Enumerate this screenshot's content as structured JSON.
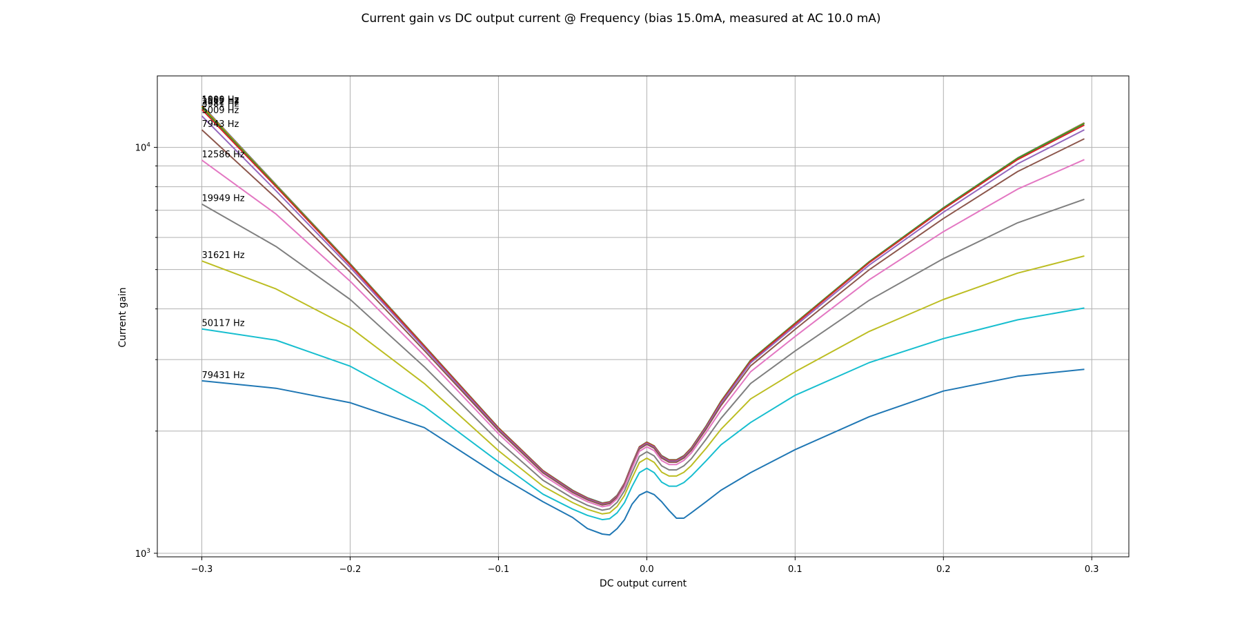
{
  "chart_data": {
    "type": "line",
    "title": "Current gain vs DC output current @ Frequency (bias 15.0mA, measured at AC 10.0 mA)",
    "xlabel": "DC output current",
    "ylabel": "Current gain",
    "xlim": [
      -0.33,
      0.325
    ],
    "ylim": [
      980,
      15000
    ],
    "y_scale": "log",
    "grid": true,
    "x_ticks": [
      -0.3,
      -0.2,
      -0.1,
      0.0,
      0.1,
      0.2,
      0.3
    ],
    "x_tick_labels": [
      "−0.3",
      "−0.2",
      "−0.1",
      "0.0",
      "0.1",
      "0.2",
      "0.3"
    ],
    "y_major_ticks": [
      1000,
      10000
    ],
    "y_minor_ticks": [
      2000,
      3000,
      4000,
      5000,
      6000,
      7000,
      8000,
      9000
    ],
    "y_tick_base": "10",
    "y_tick_exponents": [
      "3",
      "4"
    ],
    "x": [
      -0.3,
      -0.25,
      -0.2,
      -0.15,
      -0.1,
      -0.07,
      -0.05,
      -0.04,
      -0.03,
      -0.025,
      -0.02,
      -0.015,
      -0.01,
      -0.005,
      0.0,
      0.005,
      0.01,
      0.015,
      0.02,
      0.025,
      0.03,
      0.04,
      0.05,
      0.07,
      0.1,
      0.15,
      0.2,
      0.25,
      0.295
    ],
    "series": [
      {
        "name": "1000 Hz",
        "color": "#1f77b4",
        "values": [
          12700,
          8100,
          5170,
          3250,
          2040,
          1600,
          1430,
          1370,
          1330,
          1340,
          1390,
          1490,
          1660,
          1830,
          1880,
          1840,
          1740,
          1700,
          1700,
          1740,
          1820,
          2060,
          2370,
          2990,
          3690,
          5230,
          7100,
          9420,
          11500
        ]
      },
      {
        "name": "1585 Hz",
        "color": "#ff7f0e",
        "values": [
          12650,
          8080,
          5160,
          3245,
          2038,
          1598,
          1428,
          1368,
          1328,
          1338,
          1388,
          1488,
          1658,
          1828,
          1878,
          1838,
          1738,
          1698,
          1698,
          1738,
          1818,
          2058,
          2368,
          2988,
          3688,
          5228,
          7095,
          9410,
          11480
        ]
      },
      {
        "name": "2512 Hz",
        "color": "#2ca02c",
        "values": [
          12550,
          8050,
          5150,
          3240,
          2036,
          1596,
          1427,
          1367,
          1327,
          1337,
          1387,
          1487,
          1656,
          1826,
          1876,
          1836,
          1736,
          1696,
          1696,
          1736,
          1816,
          2056,
          2366,
          2986,
          3686,
          5226,
          7090,
          9400,
          11450
        ]
      },
      {
        "name": "3981 Hz",
        "color": "#d62728",
        "values": [
          12400,
          8000,
          5130,
          3232,
          2032,
          1594,
          1425,
          1365,
          1325,
          1335,
          1385,
          1485,
          1653,
          1823,
          1873,
          1833,
          1733,
          1693,
          1693,
          1733,
          1812,
          2050,
          2358,
          2972,
          3668,
          5200,
          7050,
          9330,
          11350
        ]
      },
      {
        "name": "5009 Hz",
        "color": "#9467bd",
        "values": [
          11950,
          7820,
          5060,
          3205,
          2022,
          1588,
          1420,
          1361,
          1321,
          1331,
          1381,
          1480,
          1648,
          1817,
          1866,
          1826,
          1727,
          1687,
          1687,
          1727,
          1805,
          2040,
          2340,
          2945,
          3630,
          5130,
          6920,
          9110,
          11050
        ]
      },
      {
        "name": "7943 Hz",
        "color": "#8c564b",
        "values": [
          11050,
          7500,
          4930,
          3160,
          2005,
          1578,
          1412,
          1354,
          1315,
          1325,
          1375,
          1473,
          1639,
          1806,
          1855,
          1815,
          1716,
          1676,
          1676,
          1716,
          1792,
          2022,
          2310,
          2895,
          3560,
          4995,
          6680,
          8720,
          10500
        ]
      },
      {
        "name": "12586 Hz",
        "color": "#e377c2",
        "values": [
          9300,
          6850,
          4680,
          3070,
          1970,
          1557,
          1397,
          1340,
          1302,
          1312,
          1362,
          1458,
          1619,
          1782,
          1830,
          1790,
          1692,
          1654,
          1654,
          1693,
          1766,
          1985,
          2250,
          2800,
          3420,
          4720,
          6200,
          7890,
          9330
        ]
      },
      {
        "name": "19949 Hz",
        "color": "#7f7f7f",
        "values": [
          7250,
          5700,
          4220,
          2880,
          1890,
          1513,
          1367,
          1313,
          1277,
          1287,
          1335,
          1426,
          1578,
          1733,
          1778,
          1737,
          1642,
          1605,
          1605,
          1642,
          1710,
          1910,
          2150,
          2620,
          3150,
          4200,
          5320,
          6520,
          7450
        ]
      },
      {
        "name": "31621 Hz",
        "color": "#bcbd22",
        "values": [
          5250,
          4480,
          3600,
          2620,
          1790,
          1463,
          1333,
          1283,
          1250,
          1258,
          1304,
          1389,
          1530,
          1673,
          1715,
          1675,
          1585,
          1550,
          1550,
          1583,
          1645,
          1815,
          2020,
          2400,
          2800,
          3520,
          4220,
          4900,
          5400
        ]
      },
      {
        "name": "50117 Hz",
        "color": "#17becf",
        "values": [
          3570,
          3350,
          2890,
          2300,
          1680,
          1398,
          1285,
          1240,
          1210,
          1217,
          1258,
          1333,
          1460,
          1580,
          1620,
          1580,
          1497,
          1463,
          1463,
          1493,
          1550,
          1690,
          1850,
          2100,
          2450,
          2950,
          3380,
          3760,
          4020
        ]
      },
      {
        "name": "79431 Hz",
        "color": "#1f77b4",
        "values": [
          2660,
          2550,
          2350,
          2040,
          1555,
          1340,
          1225,
          1150,
          1115,
          1110,
          1150,
          1210,
          1320,
          1390,
          1420,
          1395,
          1340,
          1275,
          1220,
          1220,
          1258,
          1340,
          1430,
          1580,
          1800,
          2170,
          2510,
          2730,
          2840
        ]
      }
    ]
  }
}
